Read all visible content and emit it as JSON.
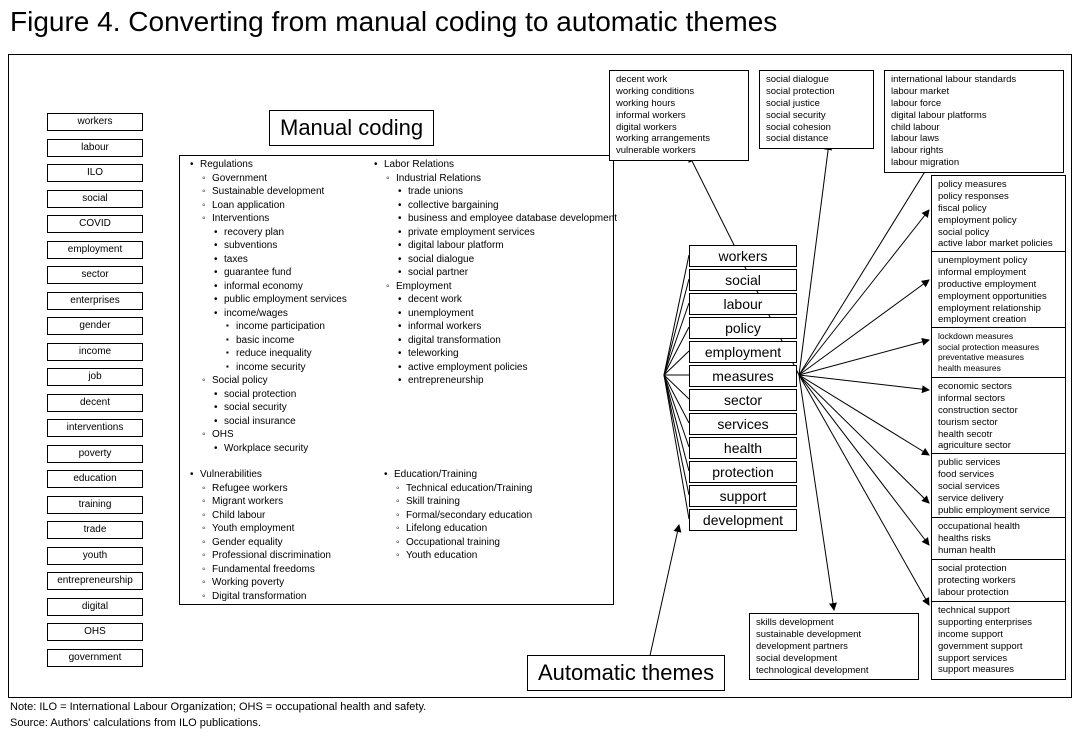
{
  "title": "Figure 4. Converting from manual coding to automatic themes",
  "manual_label": "Manual coding",
  "automatic_label": "Automatic themes",
  "left_keywords": [
    "workers",
    "labour",
    "ILO",
    "social",
    "COVID",
    "employment",
    "sector",
    "enterprises",
    "gender",
    "income",
    "job",
    "decent",
    "interventions",
    "poverty",
    "education",
    "training",
    "trade",
    "youth",
    "entrepreneurship",
    "digital",
    "OHS",
    "government"
  ],
  "manual_col1": {
    "items": [
      {
        "lv": 0,
        "t": "b",
        "text": "Regulations"
      },
      {
        "lv": 1,
        "t": "c",
        "text": "Government"
      },
      {
        "lv": 1,
        "t": "c",
        "text": "Sustainable development"
      },
      {
        "lv": 1,
        "t": "c",
        "text": "Loan application"
      },
      {
        "lv": 1,
        "t": "c",
        "text": "Interventions"
      },
      {
        "lv": 2,
        "t": "b",
        "text": "recovery plan"
      },
      {
        "lv": 2,
        "t": "b",
        "text": "subventions"
      },
      {
        "lv": 2,
        "t": "b",
        "text": "taxes"
      },
      {
        "lv": 2,
        "t": "b",
        "text": "guarantee fund"
      },
      {
        "lv": 2,
        "t": "b",
        "text": "informal economy"
      },
      {
        "lv": 2,
        "t": "b",
        "text": "public employment services"
      },
      {
        "lv": 2,
        "t": "b",
        "text": "income/wages"
      },
      {
        "lv": 3,
        "t": "s",
        "text": "income participation"
      },
      {
        "lv": 3,
        "t": "s",
        "text": "basic income"
      },
      {
        "lv": 3,
        "t": "s",
        "text": "reduce inequality"
      },
      {
        "lv": 3,
        "t": "s",
        "text": "income security"
      },
      {
        "lv": 1,
        "t": "c",
        "text": "Social policy"
      },
      {
        "lv": 2,
        "t": "b",
        "text": "social protection"
      },
      {
        "lv": 2,
        "t": "b",
        "text": "social security"
      },
      {
        "lv": 2,
        "t": "b",
        "text": "social insurance"
      },
      {
        "lv": 1,
        "t": "c",
        "text": "OHS"
      },
      {
        "lv": 2,
        "t": "b",
        "text": "Workplace security"
      }
    ]
  },
  "manual_col1b": {
    "items": [
      {
        "lv": 0,
        "t": "b",
        "text": "Vulnerabilities"
      },
      {
        "lv": 1,
        "t": "c",
        "text": "Refugee workers"
      },
      {
        "lv": 1,
        "t": "c",
        "text": "Migrant workers"
      },
      {
        "lv": 1,
        "t": "c",
        "text": "Child labour"
      },
      {
        "lv": 1,
        "t": "c",
        "text": "Youth employment"
      },
      {
        "lv": 1,
        "t": "c",
        "text": "Gender equality"
      },
      {
        "lv": 1,
        "t": "c",
        "text": "Professional discrimination"
      },
      {
        "lv": 1,
        "t": "c",
        "text": "Fundamental freedoms"
      },
      {
        "lv": 1,
        "t": "c",
        "text": "Working poverty"
      },
      {
        "lv": 1,
        "t": "c",
        "text": "Digital transformation"
      }
    ]
  },
  "manual_col2": {
    "items": [
      {
        "lv": 0,
        "t": "b",
        "text": "Labor Relations"
      },
      {
        "lv": 1,
        "t": "c",
        "text": "Industrial Relations"
      },
      {
        "lv": 2,
        "t": "b",
        "text": "trade unions"
      },
      {
        "lv": 2,
        "t": "b",
        "text": "collective bargaining"
      },
      {
        "lv": 2,
        "t": "b",
        "text": "business and employee database development"
      },
      {
        "lv": 2,
        "t": "b",
        "text": "private employment services"
      },
      {
        "lv": 2,
        "t": "b",
        "text": "digital labour platform"
      },
      {
        "lv": 2,
        "t": "b",
        "text": "social dialogue"
      },
      {
        "lv": 2,
        "t": "b",
        "text": "social partner"
      },
      {
        "lv": 1,
        "t": "c",
        "text": "Employment"
      },
      {
        "lv": 2,
        "t": "b",
        "text": "decent work"
      },
      {
        "lv": 2,
        "t": "b",
        "text": "unemployment"
      },
      {
        "lv": 2,
        "t": "b",
        "text": "informal workers"
      },
      {
        "lv": 2,
        "t": "b",
        "text": "digital transformation"
      },
      {
        "lv": 2,
        "t": "b",
        "text": "teleworking"
      },
      {
        "lv": 2,
        "t": "b",
        "text": "active employment policies"
      },
      {
        "lv": 2,
        "t": "b",
        "text": "entrepreneurship"
      }
    ]
  },
  "manual_col2b": {
    "items": [
      {
        "lv": 0,
        "t": "b",
        "text": "Education/Training"
      },
      {
        "lv": 1,
        "t": "c",
        "text": "Technical education/Training"
      },
      {
        "lv": 1,
        "t": "c",
        "text": "Skill training"
      },
      {
        "lv": 1,
        "t": "c",
        "text": "Formal/secondary education"
      },
      {
        "lv": 1,
        "t": "c",
        "text": "Lifelong education"
      },
      {
        "lv": 1,
        "t": "c",
        "text": "Occupational training"
      },
      {
        "lv": 1,
        "t": "c",
        "text": "Youth education"
      }
    ]
  },
  "themes": [
    "workers",
    "social",
    "labour",
    "policy",
    "employment",
    "measures",
    "sector",
    "services",
    "health",
    "protection",
    "support",
    "development"
  ],
  "clusters": {
    "top1": [
      "decent work",
      "working conditions",
      "working hours",
      "informal workers",
      "digital workers",
      "working arrangements",
      "vulnerable workers"
    ],
    "top2": [
      "social dialogue",
      "social protection",
      "social justice",
      "social security",
      "social cohesion",
      "social distance"
    ],
    "top3": [
      "international labour standards",
      "labour market",
      "labour force",
      "digital labour platforms",
      "child labour",
      "labour laws",
      "labour rights",
      "labour migration"
    ],
    "r1": [
      "policy measures",
      "policy responses",
      "fiscal policy",
      "employment policy",
      "social policy",
      "active labor market policies"
    ],
    "r2": [
      "unemployment policy",
      "informal employment",
      "productive employment",
      "employment opportunities",
      "employment relationship",
      "employment creation"
    ],
    "r3": [
      "lockdown measures",
      "social protection measures",
      "preventative measures",
      "health measures"
    ],
    "r4": [
      "economic sectors",
      "informal sectors",
      "construction sector",
      "tourism sector",
      "health secotr",
      "agriculture sector"
    ],
    "r5": [
      "public services",
      "food services",
      "social services",
      "service delivery",
      "public employment service"
    ],
    "r6": [
      "occupational health",
      "healths risks",
      "human health"
    ],
    "r7": [
      "social protection",
      "protecting workers",
      "labour protection"
    ],
    "r8": [
      "technical support",
      "supporting enterprises",
      "income support",
      "government support",
      "support services",
      "support measures"
    ],
    "bottom": [
      "skills development",
      "sustainable development",
      "development partners",
      "social development",
      "technological development"
    ]
  },
  "footnote1": "Note: ILO = International Labour Organization; OHS = occupational health and safety.",
  "footnote2": "Source: Authors' calculations from ILO publications.",
  "colors": {
    "border": "#000000",
    "bg": "#ffffff"
  }
}
